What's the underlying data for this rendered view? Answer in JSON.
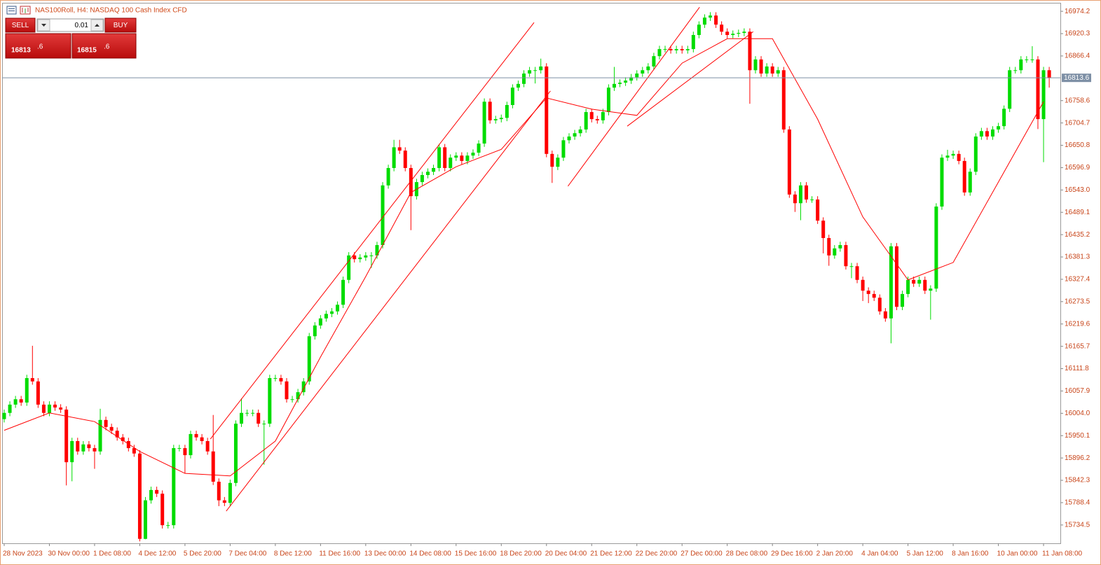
{
  "header": {
    "symbol_title": "NAS100Roll, H4:  NASDAQ 100 Cash Index CFD"
  },
  "trade_panel": {
    "sell_label": "SELL",
    "buy_label": "BUY",
    "lot": "0.01",
    "bid_big": "16813",
    "bid_small": ".6",
    "ask_big": "16815",
    "ask_small": ".6"
  },
  "chart_data": {
    "type": "candlestick",
    "categories": [
      "28 Nov 2023",
      null,
      null,
      null,
      null,
      null,
      null,
      null,
      "30 Nov 00:00",
      null,
      null,
      null,
      null,
      null,
      null,
      null,
      "1 Dec 08:00",
      null,
      null,
      null,
      null,
      null,
      null,
      null,
      "4 Dec 12:00",
      null,
      null,
      null,
      null,
      null,
      null,
      null,
      "5 Dec 20:00",
      null,
      null,
      null,
      null,
      null,
      null,
      null,
      "7 Dec 04:00",
      null,
      null,
      null,
      null,
      null,
      null,
      null,
      "8 Dec 12:00",
      null,
      null,
      null,
      null,
      null,
      null,
      null,
      "11 Dec 16:00",
      null,
      null,
      null,
      null,
      null,
      null,
      null,
      "13 Dec 00:00",
      null,
      null,
      null,
      null,
      null,
      null,
      null,
      "14 Dec 08:00",
      null,
      null,
      null,
      null,
      null,
      null,
      null,
      "15 Dec 16:00",
      null,
      null,
      null,
      null,
      null,
      null,
      null,
      "18 Dec 20:00",
      null,
      null,
      null,
      null,
      null,
      null,
      null,
      "20 Dec 04:00",
      null,
      null,
      null,
      null,
      null,
      null,
      null,
      "21 Dec 12:00",
      null,
      null,
      null,
      null,
      null,
      null,
      null,
      "22 Dec 20:00",
      null,
      null,
      null,
      null,
      null,
      null,
      null,
      "27 Dec 00:00",
      null,
      null,
      null,
      null,
      null,
      null,
      null,
      "28 Dec 08:00",
      null,
      null,
      null,
      null,
      null,
      null,
      null,
      "29 Dec 16:00",
      null,
      null,
      null,
      null,
      null,
      null,
      null,
      "2 Jan 20:00",
      null,
      null,
      null,
      null,
      null,
      null,
      null,
      "4 Jan 04:00",
      null,
      null,
      null,
      null,
      null,
      null,
      null,
      "5 Jan 12:00",
      null,
      null,
      null,
      null,
      null,
      null,
      null,
      "8 Jan 16:00",
      null,
      null,
      null,
      null,
      null,
      null,
      null,
      "10 Jan 00:00",
      null,
      null,
      null,
      null,
      null,
      null,
      null,
      "11 Jan 08:00",
      null
    ],
    "open": [
      15990,
      16005,
      16025,
      16038,
      16030,
      16089,
      16081,
      16025,
      16005,
      16025,
      16018,
      16013,
      15886,
      15937,
      15912,
      15929,
      15920,
      15912,
      15988,
      15971,
      15962,
      15946,
      15937,
      15920,
      15907,
      15701,
      15794,
      15819,
      15810,
      15734,
      15734,
      15920,
      15920,
      15903,
      15954,
      15946,
      15937,
      15912,
      15839,
      15794,
      15788,
      15836,
      15979,
      16005,
      16005,
      16005,
      15979,
      15979,
      16089,
      16089,
      16081,
      16038,
      16038,
      16055,
      16081,
      16190,
      16216,
      16233,
      16244,
      16250,
      16266,
      16326,
      16385,
      16376,
      16380,
      16385,
      16385,
      16410,
      16554,
      16596,
      16646,
      16638,
      16596,
      16528,
      16562,
      16579,
      16587,
      16596,
      16646,
      16596,
      16621,
      16626,
      16613,
      16626,
      16633,
      16655,
      16756,
      16711,
      16714,
      16717,
      16748,
      16790,
      16799,
      16824,
      16832,
      16832,
      16841,
      16630,
      16599,
      16621,
      16663,
      16672,
      16680,
      16689,
      16731,
      16714,
      16711,
      16731,
      16790,
      16799,
      16802,
      16807,
      16815,
      16824,
      16832,
      16841,
      16866,
      16883,
      16883,
      16880,
      16883,
      16880,
      16883,
      16917,
      16942,
      16959,
      16964,
      16942,
      16925,
      16917,
      16920,
      16922,
      16925,
      16832,
      16858,
      16824,
      16841,
      16824,
      16832,
      16689,
      16532,
      16511,
      16554,
      16520,
      16520,
      16469,
      16427,
      16385,
      16402,
      16410,
      16359,
      16359,
      16326,
      16300,
      16292,
      16283,
      16250,
      16233,
      16407,
      16261,
      16292,
      16326,
      16317,
      16326,
      16300,
      16305,
      16503,
      16621,
      16626,
      16630,
      16613,
      16537,
      16587,
      16672,
      16685,
      16672,
      16689,
      16697,
      16739,
      16832,
      16832,
      16858,
      16858,
      16858,
      16714,
      16832
    ],
    "high": [
      16013,
      16033,
      16046,
      16046,
      16097,
      16167,
      16089,
      16033,
      16033,
      16033,
      16026,
      16021,
      15945,
      15945,
      15937,
      15937,
      15928,
      16015,
      15996,
      15979,
      15970,
      15954,
      15945,
      15928,
      15915,
      15802,
      15827,
      15827,
      15818,
      15742,
      15928,
      15928,
      15928,
      15962,
      15962,
      15954,
      15945,
      16000,
      15847,
      15802,
      15844,
      15987,
      16040,
      16013,
      16013,
      16013,
      15987,
      16097,
      16097,
      16097,
      16089,
      16046,
      16063,
      16089,
      16198,
      16224,
      16241,
      16252,
      16258,
      16274,
      16334,
      16393,
      16393,
      16388,
      16393,
      16393,
      16418,
      16562,
      16604,
      16664,
      16664,
      16646,
      16604,
      16570,
      16587,
      16595,
      16604,
      16654,
      16654,
      16629,
      16634,
      16634,
      16634,
      16641,
      16663,
      16764,
      16764,
      16722,
      16725,
      16756,
      16798,
      16807,
      16832,
      16840,
      16840,
      16860,
      16849,
      16638,
      16629,
      16671,
      16680,
      16688,
      16697,
      16739,
      16739,
      16722,
      16739,
      16798,
      16840,
      16810,
      16815,
      16823,
      16832,
      16840,
      16849,
      16874,
      16891,
      16891,
      16891,
      16891,
      16891,
      16891,
      16925,
      16950,
      16967,
      16972,
      16972,
      16950,
      16933,
      16928,
      16930,
      16933,
      16933,
      16866,
      16866,
      16849,
      16849,
      16840,
      16840,
      16697,
      16540,
      16562,
      16562,
      16528,
      16528,
      16477,
      16435,
      16410,
      16418,
      16418,
      16367,
      16367,
      16334,
      16308,
      16300,
      16291,
      16258,
      16415,
      16415,
      16300,
      16334,
      16334,
      16334,
      16334,
      16313,
      16511,
      16629,
      16640,
      16638,
      16638,
      16621,
      16595,
      16680,
      16693,
      16693,
      16697,
      16705,
      16747,
      16840,
      16840,
      16866,
      16866,
      16890,
      16866,
      16840,
      16840
    ],
    "low": [
      15982,
      15997,
      16017,
      16022,
      16022,
      16073,
      16017,
      15997,
      15997,
      16010,
      16005,
      15830,
      15840,
      15904,
      15904,
      15912,
      15870,
      15904,
      15963,
      15954,
      15938,
      15929,
      15912,
      15899,
      15695,
      15700,
      15786,
      15802,
      15726,
      15726,
      15726,
      15912,
      15860,
      15895,
      15938,
      15929,
      15904,
      15831,
      15780,
      15780,
      15780,
      15828,
      15971,
      15997,
      15997,
      15971,
      15880,
      15971,
      16081,
      16073,
      16030,
      16030,
      16030,
      16047,
      16073,
      16182,
      16208,
      16225,
      16236,
      16242,
      16258,
      16318,
      16368,
      16368,
      16372,
      16355,
      16377,
      16402,
      16546,
      16588,
      16630,
      16588,
      16446,
      16520,
      16554,
      16571,
      16579,
      16588,
      16588,
      16588,
      16613,
      16605,
      16605,
      16618,
      16625,
      16647,
      16703,
      16703,
      16706,
      16709,
      16740,
      16782,
      16791,
      16816,
      16800,
      16824,
      16622,
      16560,
      16591,
      16613,
      16655,
      16664,
      16672,
      16681,
      16706,
      16703,
      16703,
      16723,
      16782,
      16791,
      16794,
      16799,
      16807,
      16816,
      16824,
      16833,
      16858,
      16875,
      16872,
      16872,
      16872,
      16872,
      16875,
      16909,
      16934,
      16951,
      16934,
      16917,
      16909,
      16909,
      16912,
      16914,
      16751,
      16824,
      16816,
      16816,
      16816,
      16816,
      16681,
      16524,
      16490,
      16470,
      16512,
      16512,
      16461,
      16390,
      16360,
      16377,
      16394,
      16351,
      16330,
      16318,
      16275,
      16270,
      16275,
      16242,
      16225,
      16173,
      16253,
      16253,
      16284,
      16309,
      16309,
      16292,
      16230,
      16297,
      16495,
      16613,
      16618,
      16605,
      16529,
      16529,
      16579,
      16664,
      16664,
      16664,
      16681,
      16689,
      16731,
      16824,
      16824,
      16850,
      16850,
      16690,
      16610,
      16790
    ],
    "close": [
      16005,
      16025,
      16038,
      16030,
      16089,
      16081,
      16025,
      16005,
      16025,
      16018,
      16013,
      15886,
      15937,
      15912,
      15929,
      15920,
      15912,
      15988,
      15971,
      15962,
      15946,
      15937,
      15920,
      15907,
      15701,
      15794,
      15819,
      15810,
      15734,
      15734,
      15920,
      15920,
      15903,
      15954,
      15946,
      15937,
      15912,
      15839,
      15794,
      15788,
      15836,
      15979,
      16005,
      16005,
      16005,
      15979,
      15979,
      16089,
      16089,
      16081,
      16038,
      16038,
      16055,
      16081,
      16190,
      16216,
      16233,
      16244,
      16250,
      16266,
      16326,
      16385,
      16376,
      16380,
      16385,
      16385,
      16410,
      16554,
      16596,
      16646,
      16638,
      16596,
      16528,
      16562,
      16579,
      16587,
      16596,
      16646,
      16596,
      16621,
      16626,
      16613,
      16626,
      16633,
      16655,
      16756,
      16711,
      16714,
      16717,
      16748,
      16790,
      16799,
      16824,
      16832,
      16832,
      16841,
      16630,
      16599,
      16621,
      16663,
      16672,
      16680,
      16689,
      16731,
      16714,
      16711,
      16731,
      16790,
      16799,
      16802,
      16807,
      16815,
      16824,
      16832,
      16841,
      16866,
      16883,
      16883,
      16880,
      16883,
      16880,
      16883,
      16917,
      16942,
      16959,
      16964,
      16942,
      16925,
      16917,
      16920,
      16922,
      16925,
      16832,
      16858,
      16824,
      16841,
      16824,
      16832,
      16689,
      16532,
      16511,
      16554,
      16520,
      16520,
      16469,
      16427,
      16385,
      16402,
      16410,
      16359,
      16359,
      16326,
      16300,
      16292,
      16283,
      16250,
      16233,
      16407,
      16261,
      16292,
      16326,
      16317,
      16326,
      16300,
      16305,
      16503,
      16621,
      16626,
      16630,
      16613,
      16537,
      16587,
      16672,
      16685,
      16672,
      16689,
      16697,
      16739,
      16832,
      16832,
      16858,
      16858,
      16858,
      16714,
      16832,
      16813.6
    ],
    "up_color": "#00dc00",
    "down_color": "#ff0000",
    "ylim": [
      15692,
      16993
    ],
    "yticks": [
      16974.2,
      16920.3,
      16866.4,
      16758.6,
      16704.7,
      16650.8,
      16596.9,
      {
        "value": 16543,
        "label": "16543.0"
      },
      16489.1,
      16435.2,
      16381.3,
      16327.4,
      16273.5,
      16219.6,
      16165.7,
      16111.8,
      16057.9,
      {
        "value": 16004,
        "label": "16004.0"
      },
      15950.1,
      15896.2,
      15842.3,
      15788.4,
      15734.5
    ],
    "grid": false,
    "current_price": 16813.6,
    "current_price_color": "#7d8fa5",
    "moving_average": {
      "color": "#ff0000",
      "x": [
        0,
        8,
        16,
        24,
        32,
        40,
        48,
        56,
        64,
        72,
        80,
        88,
        96,
        104,
        112,
        120,
        128,
        136,
        144,
        152,
        160,
        168,
        176,
        184
      ],
      "values": [
        15963,
        16005,
        15984,
        15912,
        15859,
        15853,
        15937,
        16140,
        16334,
        16537,
        16599,
        16641,
        16765,
        16738,
        16723,
        16849,
        16908,
        16908,
        16714,
        16478,
        16326,
        16368,
        16562,
        16756
      ]
    },
    "trend_line_color": "#ff0000",
    "trend_lines": [
      {
        "x": [
          36.5,
          93.8
        ],
        "values": [
          15942,
          16947
        ]
      },
      {
        "x": [
          39.3,
          96.7
        ],
        "values": [
          15768,
          16782
        ]
      },
      {
        "x": [
          99.8,
          123.1
        ],
        "values": [
          16552,
          16984
        ]
      },
      {
        "x": [
          110.3,
          132.6
        ],
        "values": [
          16697,
          16925
        ]
      }
    ]
  }
}
